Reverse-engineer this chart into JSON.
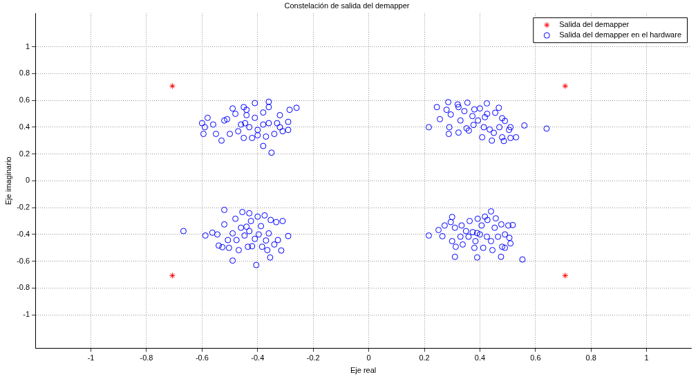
{
  "chart_data": {
    "type": "scatter",
    "title": "Constelación de salida del demapper",
    "xlabel": "Eje real",
    "ylabel": "Eje imaginario",
    "xlim": [
      -1.2,
      1.16
    ],
    "ylim": [
      -1.25,
      1.25
    ],
    "xticks": [
      -1,
      -0.8,
      -0.6,
      -0.4,
      -0.2,
      0,
      0.2,
      0.4,
      0.6,
      0.8,
      1
    ],
    "yticks": [
      -1,
      -0.8,
      -0.6,
      -0.4,
      -0.2,
      0,
      0.2,
      0.4,
      0.6,
      0.8,
      1
    ],
    "grid": true,
    "legend": "top right",
    "series": [
      {
        "name": "Salida del demapper",
        "color": "#ff0000",
        "marker": "cross",
        "x": [
          -0.707,
          0.707,
          -0.707,
          0.707
        ],
        "values": [
          0.707,
          0.707,
          -0.707,
          -0.707
        ]
      },
      {
        "name": "Salida del demapper en el hardware",
        "color": "#0000ff",
        "marker": "circle",
        "x": [
          -0.6,
          -0.59,
          -0.595,
          -0.58,
          -0.56,
          -0.55,
          -0.53,
          -0.52,
          -0.51,
          -0.5,
          -0.49,
          -0.48,
          -0.46,
          -0.45,
          -0.45,
          -0.44,
          -0.44,
          -0.43,
          -0.42,
          -0.41,
          -0.41,
          -0.4,
          -0.4,
          -0.38,
          -0.38,
          -0.38,
          -0.37,
          -0.36,
          -0.36,
          -0.36,
          -0.35,
          -0.34,
          -0.33,
          -0.32,
          -0.32,
          -0.31,
          -0.29,
          -0.29,
          -0.285,
          -0.26,
          -0.445,
          -0.47,
          0.216,
          0.245,
          0.256,
          0.286,
          0.28,
          0.29,
          0.288,
          0.295,
          0.32,
          0.323,
          0.323,
          0.33,
          0.344,
          0.355,
          0.36,
          0.373,
          0.377,
          0.38,
          0.393,
          0.4,
          0.408,
          0.414,
          0.425,
          0.426,
          0.435,
          0.443,
          0.45,
          0.455,
          0.468,
          0.47,
          0.48,
          0.48,
          0.486,
          0.49,
          0.505,
          0.51,
          0.51,
          0.53,
          0.56,
          0.64,
          0.418,
          0.352,
          -0.667,
          -0.588,
          -0.563,
          -0.545,
          -0.54,
          -0.527,
          -0.52,
          -0.52,
          -0.507,
          -0.503,
          -0.49,
          -0.49,
          -0.48,
          -0.476,
          -0.468,
          -0.46,
          -0.455,
          -0.447,
          -0.435,
          -0.43,
          -0.43,
          -0.424,
          -0.42,
          -0.41,
          -0.405,
          -0.4,
          -0.396,
          -0.388,
          -0.384,
          -0.375,
          -0.37,
          -0.365,
          -0.36,
          -0.355,
          -0.353,
          -0.34,
          -0.333,
          -0.327,
          -0.315,
          -0.31,
          -0.29,
          -0.44,
          0.216,
          0.251,
          0.265,
          0.273,
          0.295,
          0.3,
          0.3,
          0.31,
          0.31,
          0.313,
          0.33,
          0.334,
          0.338,
          0.359,
          0.363,
          0.374,
          0.38,
          0.384,
          0.39,
          0.392,
          0.4,
          0.406,
          0.412,
          0.418,
          0.425,
          0.427,
          0.44,
          0.44,
          0.445,
          0.453,
          0.457,
          0.465,
          0.476,
          0.477,
          0.48,
          0.49,
          0.49,
          0.502,
          0.506,
          0.51,
          0.518,
          0.553,
          0.35,
          0.39
        ],
        "values": [
          0.43,
          0.4,
          0.35,
          0.47,
          0.42,
          0.35,
          0.3,
          0.45,
          0.46,
          0.35,
          0.54,
          0.5,
          0.42,
          0.55,
          0.32,
          0.49,
          0.53,
          0.4,
          0.32,
          0.47,
          0.58,
          0.38,
          0.34,
          0.51,
          0.26,
          0.42,
          0.33,
          0.59,
          0.55,
          0.43,
          0.21,
          0.35,
          0.43,
          0.4,
          0.49,
          0.37,
          0.38,
          0.44,
          0.53,
          0.545,
          0.43,
          0.37,
          0.4,
          0.55,
          0.46,
          0.587,
          0.53,
          0.4,
          0.35,
          0.495,
          0.57,
          0.55,
          0.36,
          0.45,
          0.52,
          0.583,
          0.375,
          0.483,
          0.417,
          0.533,
          0.45,
          0.54,
          0.325,
          0.4,
          0.578,
          0.5,
          0.383,
          0.3,
          0.358,
          0.508,
          0.545,
          0.4,
          0.467,
          0.325,
          0.297,
          0.447,
          0.38,
          0.4,
          0.32,
          0.325,
          0.413,
          0.39,
          0.475,
          0.392,
          -0.375,
          -0.408,
          -0.387,
          -0.4,
          -0.483,
          -0.495,
          -0.217,
          -0.325,
          -0.442,
          -0.5,
          -0.595,
          -0.392,
          -0.283,
          -0.442,
          -0.517,
          -0.35,
          -0.233,
          -0.408,
          -0.492,
          -0.242,
          -0.375,
          -0.3,
          -0.488,
          -0.433,
          -0.628,
          -0.267,
          -0.4,
          -0.338,
          -0.492,
          -0.258,
          -0.445,
          -0.517,
          -0.392,
          -0.572,
          -0.292,
          -0.475,
          -0.308,
          -0.442,
          -0.52,
          -0.3,
          -0.412,
          -0.342,
          -0.408,
          -0.367,
          -0.413,
          -0.333,
          -0.308,
          -0.45,
          -0.27,
          -0.35,
          -0.567,
          -0.492,
          -0.417,
          -0.333,
          -0.475,
          -0.417,
          -0.3,
          -0.383,
          -0.5,
          -0.45,
          -0.572,
          -0.283,
          -0.4,
          -0.333,
          -0.5,
          -0.267,
          -0.417,
          -0.292,
          -0.228,
          -0.45,
          -0.517,
          -0.35,
          -0.28,
          -0.417,
          -0.567,
          -0.325,
          -0.492,
          -0.4,
          -0.5,
          -0.333,
          -0.425,
          -0.467,
          -0.33,
          -0.587,
          -0.375,
          -0.39
        ]
      }
    ]
  }
}
